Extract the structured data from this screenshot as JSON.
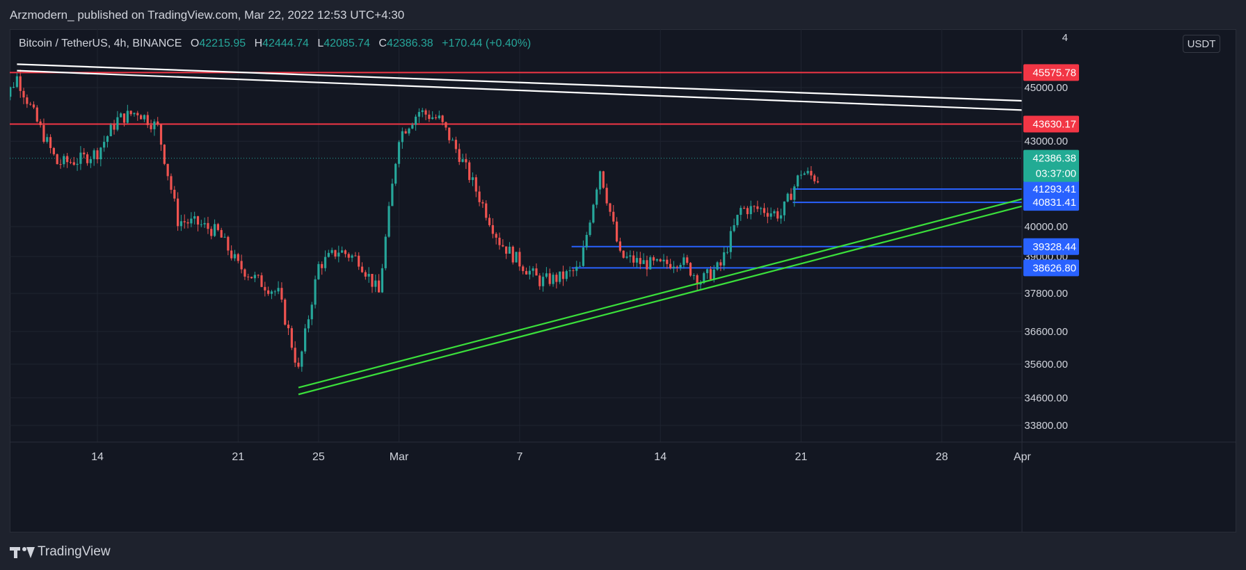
{
  "header": {
    "author": "Arzmodern_",
    "published_text": "published on TradingView.com, Mar 22, 2022 12:53 UTC+4:30"
  },
  "legend": {
    "symbol": "Bitcoin / TetherUS, 4h, BINANCE",
    "open_label": "O",
    "open": "42215.95",
    "high_label": "H",
    "high": "42444.74",
    "low_label": "L",
    "low": "42085.74",
    "close_label": "C",
    "close": "42386.38",
    "change": "+170.44 (+0.40%)"
  },
  "currency_button": "USDT",
  "footer": {
    "brand": "TradingView"
  },
  "colors": {
    "up": "#26a69a",
    "down": "#ef5350",
    "red_line": "#f23645",
    "blue_line": "#2962ff",
    "green_line": "#3be03b",
    "white_line": "#ffffff",
    "background": "#131722",
    "grid": "#1f2430"
  },
  "chart_data": {
    "type": "candlestick",
    "symbol": "Bitcoin / TetherUS",
    "interval": "4h",
    "exchange": "BINANCE",
    "x_start": "2022-02-09",
    "x_end": "2022-04-01",
    "price_axis": {
      "scale": "log",
      "range": [
        33500,
        46500
      ],
      "ticks": [
        "4",
        "45000.00",
        "43000.00",
        "40000.00",
        "39000.00",
        "37800.00",
        "36600.00",
        "35600.00",
        "34600.00",
        "33800.00"
      ]
    },
    "x_axis": {
      "ticks": [
        {
          "label": "14",
          "date": "2022-02-14"
        },
        {
          "label": "21",
          "date": "2022-02-21"
        },
        {
          "label": "25",
          "date": "2022-02-25"
        },
        {
          "label": "Mar",
          "date": "2022-03-01"
        },
        {
          "label": "7",
          "date": "2022-03-07"
        },
        {
          "label": "14",
          "date": "2022-03-14"
        },
        {
          "label": "21",
          "date": "2022-03-21"
        },
        {
          "label": "28",
          "date": "2022-03-28"
        },
        {
          "label": "Apr",
          "date": "2022-04-01"
        }
      ]
    },
    "horizontal_lines": [
      {
        "price": 45575.78,
        "label": "45575.78",
        "color": "red"
      },
      {
        "price": 43630.17,
        "label": "43630.17",
        "color": "red"
      },
      {
        "price": 41293.41,
        "label": "41293.41",
        "color": "blue",
        "from": "2022-03-21"
      },
      {
        "price": 40831.41,
        "label": "40831.41",
        "color": "blue",
        "from": "2022-03-21"
      },
      {
        "price": 39328.44,
        "label": "39328.44",
        "color": "blue",
        "from": "2022-03-10"
      },
      {
        "price": 38626.8,
        "label": "38626.80",
        "color": "blue",
        "from": "2022-03-10"
      }
    ],
    "last_price": {
      "price": 42386.38,
      "label": "42386.38",
      "countdown": "03:37:00"
    },
    "trend_lines": [
      {
        "color": "white",
        "from": {
          "date": "2022-02-10",
          "price": 45900
        },
        "to": {
          "date": "2022-04-01",
          "price": 44500
        }
      },
      {
        "color": "white",
        "from": {
          "date": "2022-02-10",
          "price": 45650
        },
        "to": {
          "date": "2022-04-01",
          "price": 44150
        }
      },
      {
        "color": "green",
        "from": {
          "date": "2022-02-24",
          "price": 34900
        },
        "to": {
          "date": "2022-04-01",
          "price": 40950
        }
      },
      {
        "color": "green",
        "from": {
          "date": "2022-02-24",
          "price": 34700
        },
        "to": {
          "date": "2022-04-01",
          "price": 40700
        }
      }
    ],
    "close_path": [
      {
        "date": "2022-02-09",
        "price": 44000
      },
      {
        "date": "2022-02-10",
        "price": 45400
      },
      {
        "date": "2022-02-11",
        "price": 43700
      },
      {
        "date": "2022-02-12",
        "price": 42200
      },
      {
        "date": "2022-02-13",
        "price": 42300
      },
      {
        "date": "2022-02-14",
        "price": 42600
      },
      {
        "date": "2022-02-15",
        "price": 43800
      },
      {
        "date": "2022-02-16",
        "price": 44100
      },
      {
        "date": "2022-02-17",
        "price": 43500
      },
      {
        "date": "2022-02-18",
        "price": 40200
      },
      {
        "date": "2022-02-19",
        "price": 40100
      },
      {
        "date": "2022-02-20",
        "price": 39800
      },
      {
        "date": "2022-02-21",
        "price": 38700
      },
      {
        "date": "2022-02-22",
        "price": 38200
      },
      {
        "date": "2022-02-23",
        "price": 37800
      },
      {
        "date": "2022-02-24",
        "price": 35400
      },
      {
        "date": "2022-02-25",
        "price": 38700
      },
      {
        "date": "2022-02-26",
        "price": 39200
      },
      {
        "date": "2022-02-27",
        "price": 38900
      },
      {
        "date": "2022-02-28",
        "price": 37800
      },
      {
        "date": "2022-03-01",
        "price": 43200
      },
      {
        "date": "2022-03-02",
        "price": 44100
      },
      {
        "date": "2022-03-03",
        "price": 43800
      },
      {
        "date": "2022-03-04",
        "price": 42500
      },
      {
        "date": "2022-03-05",
        "price": 41000
      },
      {
        "date": "2022-03-06",
        "price": 39500
      },
      {
        "date": "2022-03-07",
        "price": 38800
      },
      {
        "date": "2022-03-08",
        "price": 38200
      },
      {
        "date": "2022-03-09",
        "price": 38300
      },
      {
        "date": "2022-03-10",
        "price": 38600
      },
      {
        "date": "2022-03-11",
        "price": 42000
      },
      {
        "date": "2022-03-12",
        "price": 39000
      },
      {
        "date": "2022-03-13",
        "price": 38800
      },
      {
        "date": "2022-03-14",
        "price": 38700
      },
      {
        "date": "2022-03-15",
        "price": 38900
      },
      {
        "date": "2022-03-16",
        "price": 38200
      },
      {
        "date": "2022-03-17",
        "price": 38700
      },
      {
        "date": "2022-03-18",
        "price": 40600
      },
      {
        "date": "2022-03-19",
        "price": 40600
      },
      {
        "date": "2022-03-20",
        "price": 40400
      },
      {
        "date": "2022-03-21",
        "price": 41900
      },
      {
        "date": "2022-03-22",
        "price": 41600
      }
    ]
  }
}
